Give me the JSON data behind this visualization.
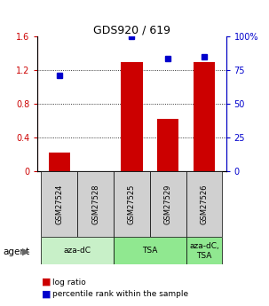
{
  "title": "GDS920 / 619",
  "samples": [
    "GSM27524",
    "GSM27528",
    "GSM27525",
    "GSM27529",
    "GSM27526"
  ],
  "log_ratio": [
    0.22,
    0.0,
    1.3,
    0.62,
    1.3
  ],
  "percentile_rank": [
    71,
    null,
    100,
    84,
    85
  ],
  "groups": [
    {
      "label": "aza-dC",
      "start": 0,
      "end": 2,
      "color": "#c8f0c8"
    },
    {
      "label": "TSA",
      "start": 2,
      "end": 4,
      "color": "#90e890"
    },
    {
      "label": "aza-dC,\nTSA",
      "start": 4,
      "end": 5,
      "color": "#90e890"
    }
  ],
  "bar_color": "#cc0000",
  "dot_color": "#0000cc",
  "sample_box_color": "#d0d0d0",
  "left_ylim": [
    0,
    1.6
  ],
  "right_ylim": [
    0,
    100
  ],
  "left_yticks": [
    0,
    0.4,
    0.8,
    1.2,
    1.6
  ],
  "left_yticklabels": [
    "0",
    "0.4",
    "0.8",
    "1.2",
    "1.6"
  ],
  "right_yticks": [
    0,
    25,
    50,
    75,
    100
  ],
  "right_yticklabels": [
    "0",
    "25",
    "50",
    "75",
    "100%"
  ],
  "legend_log_ratio": "log ratio",
  "legend_percentile": "percentile rank within the sample",
  "agent_label": "agent",
  "bar_width": 0.6
}
